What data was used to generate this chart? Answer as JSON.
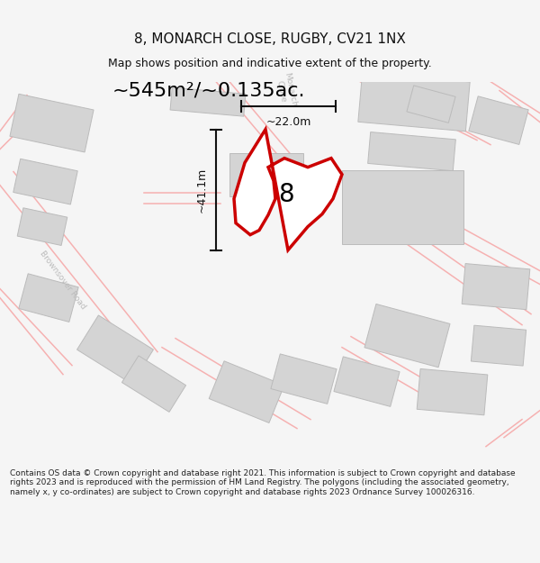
{
  "title": "8, MONARCH CLOSE, RUGBY, CV21 1NX",
  "subtitle": "Map shows position and indicative extent of the property.",
  "area_text": "~545m²/~0.135ac.",
  "dim_width": "~22.0m",
  "dim_height": "~41.1m",
  "plot_number": "8",
  "footer": "Contains OS data © Crown copyright and database right 2021. This information is subject to Crown copyright and database rights 2023 and is reproduced with the permission of HM Land Registry. The polygons (including the associated geometry, namely x, y co-ordinates) are subject to Crown copyright and database rights 2023 Ordnance Survey 100026316.",
  "bg_color": "#f5f5f5",
  "map_bg": "#ffffff",
  "road_color": "#f5a0a0",
  "building_color": "#d4d4d4",
  "building_edge": "#bbbbbb",
  "plot_outline_color": "#cc0000",
  "plot_fill_color": "#ffffff",
  "dim_color": "#111111",
  "title_color": "#111111",
  "street_label_color": "#bbbbbb",
  "footer_color": "#222222",
  "title_fontsize": 11,
  "subtitle_fontsize": 9,
  "area_fontsize": 16,
  "dim_fontsize": 9,
  "plot_num_fontsize": 20,
  "footer_fontsize": 6.5
}
